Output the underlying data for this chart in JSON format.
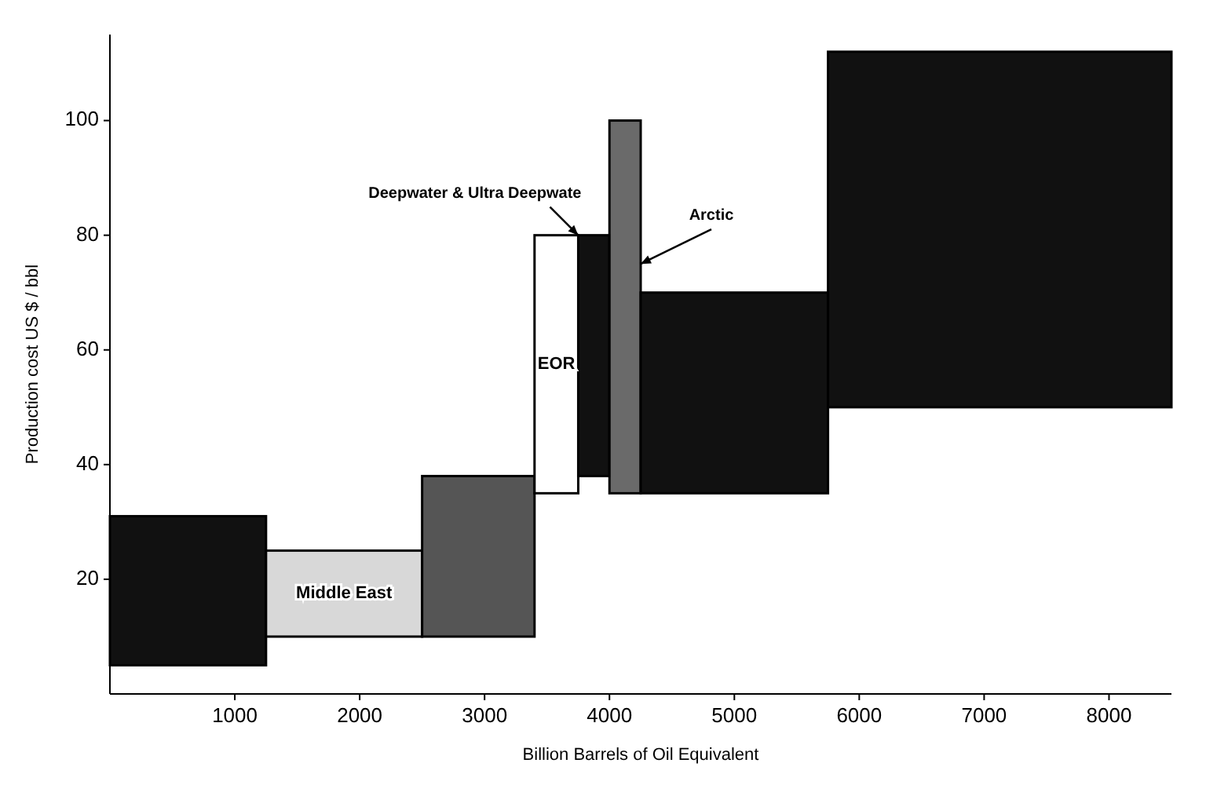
{
  "chart_data": {
    "type": "histogram",
    "xlabel": "Billion Barrels of Oil Equivalent",
    "ylabel": "Production cost US $ / bbl",
    "categories": [
      null,
      "Middle East",
      null,
      "EOR",
      null,
      null,
      null,
      null
    ],
    "bins": [
      0,
      1250,
      2500,
      3400,
      3750,
      4000,
      4250,
      5750,
      8500
    ],
    "values": [
      26,
      15,
      28,
      45,
      42,
      65,
      35,
      62
    ],
    "base": [
      5,
      10,
      10,
      35,
      38,
      35,
      35,
      50
    ],
    "colors": [
      "#111111",
      "#d8d8d8",
      "#555555",
      "#ffffff",
      "#111111",
      "#6a6a6a",
      "#111111",
      "#111111"
    ],
    "xlim": [
      0,
      8500
    ],
    "xticks": [
      1000,
      2000,
      3000,
      4000,
      5000,
      6000,
      7000,
      8000
    ],
    "ylim": [
      0,
      115
    ],
    "yticks": [
      20,
      40,
      60,
      80,
      100
    ],
    "annotations": [
      {
        "text": "Deepwater & Ultra Deepwate",
        "x": 3750,
        "y": 80
      },
      {
        "text": "Arctic",
        "x": 4250,
        "y": 75
      }
    ]
  }
}
